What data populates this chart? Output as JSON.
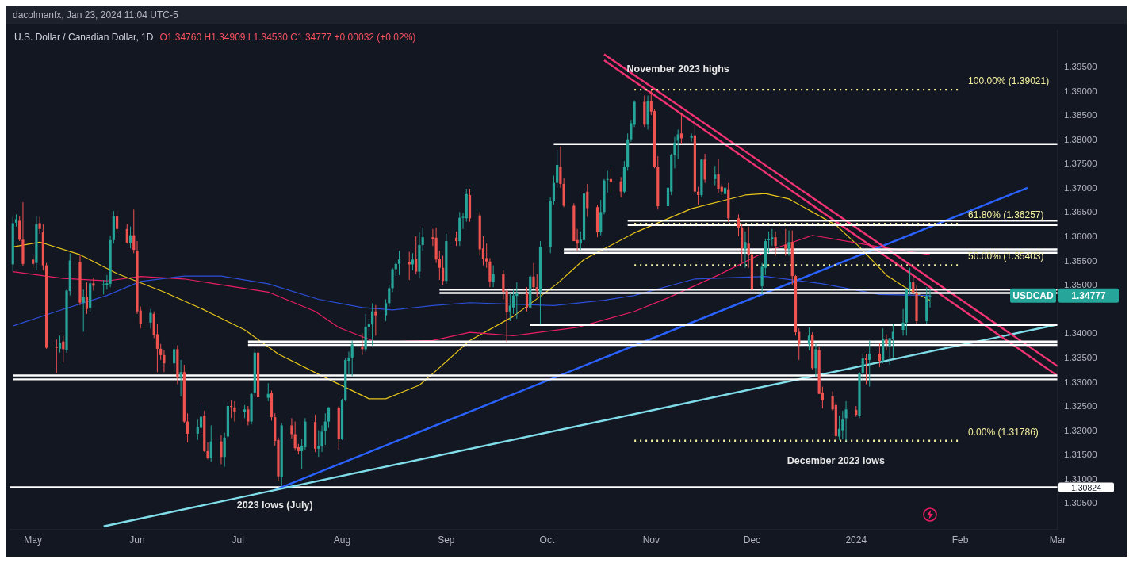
{
  "chart_data": {
    "type": "candlestick",
    "title": "U.S. Dollar / Canadian Dollar, 1D",
    "subtitle": "O1.34760 H1.34909 L1.34530 C1.34777 +0.00032 (+0.02%)",
    "annotations": [
      "dacolmanfx, Jan 23, 2024 11:04 UTC-5",
      "November 2023 highs",
      "December 2023 lows",
      "2023 lows (July)",
      {
        "text": "100.00% (1.39021)",
        "x": "2024-02-01",
        "y": 1.39021
      },
      {
        "text": "61.80% (1.36257)",
        "x": "2024-02-01",
        "y": 1.36257
      },
      {
        "text": "50.00% (1.35403)",
        "x": "2024-02-01",
        "y": 1.35403
      },
      {
        "text": "0.00% (1.31786)",
        "x": "2024-02-01",
        "y": 1.31786
      },
      "USDCAD",
      "1.34777"
    ],
    "xlim": [
      "2023-04-24",
      "2024-03-01"
    ],
    "xticks": [
      {
        "value": "2023-05-01",
        "label": "May"
      },
      {
        "value": "2023-06-01",
        "label": "Jun"
      },
      {
        "value": "2023-07-01",
        "label": "Jul"
      },
      {
        "value": "2023-08-01",
        "label": "Aug"
      },
      {
        "value": "2023-09-01",
        "label": "Sep"
      },
      {
        "value": "2023-10-01",
        "label": "Oct"
      },
      {
        "value": "2023-11-01",
        "label": "Nov"
      },
      {
        "value": "2023-12-01",
        "label": "Dec"
      },
      {
        "value": "2024-01-01",
        "label": "2024"
      },
      {
        "value": "2024-02-01",
        "label": "Feb"
      },
      {
        "value": "2024-03-01",
        "label": "Mar"
      }
    ],
    "ylim": [
      1.2995,
      1.4025
    ],
    "yticks": [
      {
        "value": 1.305,
        "label": "1.30500"
      },
      {
        "value": 1.31,
        "label": "1.31000"
      },
      {
        "value": 1.315,
        "label": "1.31500"
      },
      {
        "value": 1.32,
        "label": "1.32000"
      },
      {
        "value": 1.325,
        "label": "1.32500"
      },
      {
        "value": 1.33,
        "label": "1.33000"
      },
      {
        "value": 1.335,
        "label": "1.33500"
      },
      {
        "value": 1.34,
        "label": "1.34000"
      },
      {
        "value": 1.35,
        "label": "1.35000"
      },
      {
        "value": 1.355,
        "label": "1.35500"
      },
      {
        "value": 1.36,
        "label": "1.36000"
      },
      {
        "value": 1.365,
        "label": "1.36500"
      },
      {
        "value": 1.37,
        "label": "1.37000"
      },
      {
        "value": 1.375,
        "label": "1.37500"
      },
      {
        "value": 1.38,
        "label": "1.38000"
      },
      {
        "value": 1.385,
        "label": "1.38500"
      },
      {
        "value": 1.39,
        "label": "1.39000"
      },
      {
        "value": 1.395,
        "label": "1.39500"
      }
    ],
    "ref_lines": [
      {
        "axis": "y",
        "value": 1.30824,
        "label": "1.30824",
        "color": "#ffffff"
      }
    ],
    "x": [
      "2023-04-25",
      "2023-04-26",
      "2023-04-27",
      "2023-04-28",
      "2023-05-01",
      "2023-05-02",
      "2023-05-03",
      "2023-05-04",
      "2023-05-05",
      "2023-05-08",
      "2023-05-09",
      "2023-05-10",
      "2023-05-11",
      "2023-05-12",
      "2023-05-15",
      "2023-05-16",
      "2023-05-17",
      "2023-05-18",
      "2023-05-19",
      "2023-05-22",
      "2023-05-23",
      "2023-05-24",
      "2023-05-25",
      "2023-05-26",
      "2023-05-29",
      "2023-05-30",
      "2023-05-31",
      "2023-06-01",
      "2023-06-02",
      "2023-06-05",
      "2023-06-06",
      "2023-06-07",
      "2023-06-08",
      "2023-06-09",
      "2023-06-12",
      "2023-06-13",
      "2023-06-14",
      "2023-06-15",
      "2023-06-16",
      "2023-06-19",
      "2023-06-20",
      "2023-06-21",
      "2023-06-22",
      "2023-06-23",
      "2023-06-26",
      "2023-06-27",
      "2023-06-28",
      "2023-06-29",
      "2023-06-30",
      "2023-07-03",
      "2023-07-04",
      "2023-07-05",
      "2023-07-06",
      "2023-07-07",
      "2023-07-10",
      "2023-07-11",
      "2023-07-12",
      "2023-07-13",
      "2023-07-14",
      "2023-07-17",
      "2023-07-18",
      "2023-07-19",
      "2023-07-20",
      "2023-07-21",
      "2023-07-24",
      "2023-07-25",
      "2023-07-26",
      "2023-07-27",
      "2023-07-28",
      "2023-07-31",
      "2023-08-01",
      "2023-08-02",
      "2023-08-03",
      "2023-08-04",
      "2023-08-07",
      "2023-08-08",
      "2023-08-09",
      "2023-08-10",
      "2023-08-11",
      "2023-08-14",
      "2023-08-15",
      "2023-08-16",
      "2023-08-17",
      "2023-08-18",
      "2023-08-21",
      "2023-08-22",
      "2023-08-23",
      "2023-08-24",
      "2023-08-25",
      "2023-08-28",
      "2023-08-29",
      "2023-08-30",
      "2023-08-31",
      "2023-09-01",
      "2023-09-04",
      "2023-09-05",
      "2023-09-06",
      "2023-09-07",
      "2023-09-08",
      "2023-09-11",
      "2023-09-12",
      "2023-09-13",
      "2023-09-14",
      "2023-09-15",
      "2023-09-18",
      "2023-09-19",
      "2023-09-20",
      "2023-09-21",
      "2023-09-22",
      "2023-09-25",
      "2023-09-26",
      "2023-09-27",
      "2023-09-28",
      "2023-09-29",
      "2023-10-02",
      "2023-10-03",
      "2023-10-04",
      "2023-10-05",
      "2023-10-06",
      "2023-10-09",
      "2023-10-10",
      "2023-10-11",
      "2023-10-12",
      "2023-10-13",
      "2023-10-16",
      "2023-10-17",
      "2023-10-18",
      "2023-10-19",
      "2023-10-20",
      "2023-10-23",
      "2023-10-24",
      "2023-10-25",
      "2023-10-26",
      "2023-10-27",
      "2023-10-30",
      "2023-10-31",
      "2023-11-01",
      "2023-11-02",
      "2023-11-03",
      "2023-11-06",
      "2023-11-07",
      "2023-11-08",
      "2023-11-09",
      "2023-11-10",
      "2023-11-13",
      "2023-11-14",
      "2023-11-15",
      "2023-11-16",
      "2023-11-17",
      "2023-11-20",
      "2023-11-21",
      "2023-11-22",
      "2023-11-23",
      "2023-11-24",
      "2023-11-27",
      "2023-11-28",
      "2023-11-29",
      "2023-11-30",
      "2023-12-01",
      "2023-12-04",
      "2023-12-05",
      "2023-12-06",
      "2023-12-07",
      "2023-12-08",
      "2023-12-11",
      "2023-12-12",
      "2023-12-13",
      "2023-12-14",
      "2023-12-15",
      "2023-12-18",
      "2023-12-19",
      "2023-12-20",
      "2023-12-21",
      "2023-12-22",
      "2023-12-25",
      "2023-12-26",
      "2023-12-27",
      "2023-12-28",
      "2023-12-29",
      "2024-01-01",
      "2024-01-02",
      "2024-01-03",
      "2024-01-04",
      "2024-01-05",
      "2024-01-08",
      "2024-01-09",
      "2024-01-10",
      "2024-01-11",
      "2024-01-12",
      "2024-01-15",
      "2024-01-16",
      "2024-01-17",
      "2024-01-18",
      "2024-01-19",
      "2024-01-22",
      "2024-01-23"
    ],
    "ohlc": [
      [
        1.3542,
        1.364,
        1.3527,
        1.3627
      ],
      [
        1.3628,
        1.3645,
        1.362,
        1.3635
      ],
      [
        1.3632,
        1.3642,
        1.359,
        1.3593
      ],
      [
        1.3593,
        1.367,
        1.3538,
        1.3543
      ],
      [
        1.3552,
        1.356,
        1.3535,
        1.3543
      ],
      [
        1.3545,
        1.3642,
        1.353,
        1.3625
      ],
      [
        1.3627,
        1.364,
        1.3605,
        1.3615
      ],
      [
        1.3608,
        1.3625,
        1.353,
        1.354
      ],
      [
        1.354,
        1.3545,
        1.3368,
        1.337
      ],
      [
        1.3372,
        1.3387,
        1.3318,
        1.337
      ],
      [
        1.3368,
        1.3395,
        1.336,
        1.338
      ],
      [
        1.3383,
        1.3395,
        1.334,
        1.3367
      ],
      [
        1.3365,
        1.349,
        1.336,
        1.3488
      ],
      [
        1.3487,
        1.3565,
        1.3478,
        1.355
      ],
      [
        1.3547,
        1.3562,
        1.3458,
        1.3463
      ],
      [
        1.3463,
        1.349,
        1.3403,
        1.3475
      ],
      [
        1.3475,
        1.3505,
        1.344,
        1.345
      ],
      [
        1.3452,
        1.351,
        1.3445,
        1.3503
      ],
      [
        1.3503,
        1.3515,
        1.3488,
        1.3498
      ],
      [
        1.35,
        1.351,
        1.348,
        1.3501
      ],
      [
        1.35,
        1.352,
        1.349,
        1.3503
      ],
      [
        1.3502,
        1.36,
        1.3495,
        1.3592
      ],
      [
        1.3592,
        1.3652,
        1.3585,
        1.3642
      ],
      [
        1.3642,
        1.3655,
        1.361,
        1.3615
      ],
      [
        1.3615,
        1.3625,
        1.3585,
        1.3587
      ],
      [
        1.3587,
        1.362,
        1.3575,
        1.3602
      ],
      [
        1.3602,
        1.3655,
        1.3565,
        1.3572
      ],
      [
        1.357,
        1.359,
        1.344,
        1.3445
      ],
      [
        1.3447,
        1.3455,
        1.341,
        1.342
      ],
      [
        1.3422,
        1.345,
        1.341,
        1.3442
      ],
      [
        1.344,
        1.3445,
        1.339,
        1.3397
      ],
      [
        1.3398,
        1.342,
        1.332,
        1.3368
      ],
      [
        1.3368,
        1.3378,
        1.3345,
        1.3355
      ],
      [
        1.3355,
        1.3365,
        1.332,
        1.3338
      ],
      [
        1.3338,
        1.337,
        1.332,
        1.3367
      ],
      [
        1.3367,
        1.3375,
        1.3295,
        1.3308
      ],
      [
        1.3308,
        1.3345,
        1.327,
        1.332
      ],
      [
        1.332,
        1.3335,
        1.3215,
        1.3218
      ],
      [
        1.3218,
        1.3235,
        1.3175,
        1.3193
      ],
      [
        1.3193,
        1.3222,
        1.318,
        1.3207
      ],
      [
        1.3205,
        1.3255,
        1.3195,
        1.3228
      ],
      [
        1.323,
        1.324,
        1.3155,
        1.3157
      ],
      [
        1.3157,
        1.3175,
        1.314,
        1.3143
      ],
      [
        1.3143,
        1.321,
        1.3135,
        1.3177
      ],
      [
        1.3177,
        1.319,
        1.313,
        1.3145
      ],
      [
        1.3145,
        1.3195,
        1.3125,
        1.3185
      ],
      [
        1.3187,
        1.3258,
        1.318,
        1.325
      ],
      [
        1.325,
        1.3262,
        1.3225,
        1.3248
      ],
      [
        1.3247,
        1.326,
        1.3218,
        1.3238
      ],
      [
        1.3237,
        1.3252,
        1.3225,
        1.3243
      ],
      [
        1.3243,
        1.325,
        1.321,
        1.3218
      ],
      [
        1.3218,
        1.3277,
        1.3212,
        1.3275
      ],
      [
        1.3277,
        1.3368,
        1.327,
        1.336
      ],
      [
        1.336,
        1.3385,
        1.3265,
        1.3268
      ],
      [
        1.3267,
        1.3297,
        1.326,
        1.3275
      ],
      [
        1.3277,
        1.3282,
        1.322,
        1.3227
      ],
      [
        1.3227,
        1.3235,
        1.3168,
        1.3178
      ],
      [
        1.318,
        1.3185,
        1.3095,
        1.3105
      ],
      [
        1.3103,
        1.3215,
        1.3085,
        1.321
      ],
      [
        1.321,
        1.3225,
        1.3183,
        1.3192
      ],
      [
        1.3192,
        1.3218,
        1.3158,
        1.3163
      ],
      [
        1.3165,
        1.3172,
        1.315,
        1.3157
      ],
      [
        1.3157,
        1.3182,
        1.312,
        1.3168
      ],
      [
        1.3165,
        1.3225,
        1.316,
        1.3218
      ],
      [
        1.3217,
        1.3232,
        1.3155,
        1.3162
      ],
      [
        1.3162,
        1.32,
        1.3145,
        1.3168
      ],
      [
        1.3167,
        1.321,
        1.3155,
        1.3197
      ],
      [
        1.3198,
        1.3235,
        1.317,
        1.3218
      ],
      [
        1.3218,
        1.3248,
        1.3205,
        1.3247
      ],
      [
        1.3247,
        1.325,
        1.316,
        1.3182
      ],
      [
        1.3182,
        1.3265,
        1.318,
        1.3263
      ],
      [
        1.3263,
        1.3348,
        1.326,
        1.3345
      ],
      [
        1.3343,
        1.3362,
        1.3315,
        1.335
      ],
      [
        1.335,
        1.3385,
        1.3312,
        1.3377
      ],
      [
        1.3372,
        1.34,
        1.3355,
        1.3367
      ],
      [
        1.3367,
        1.344,
        1.3362,
        1.3413
      ],
      [
        1.3413,
        1.343,
        1.3395,
        1.342
      ],
      [
        1.3418,
        1.3462,
        1.3375,
        1.3445
      ],
      [
        1.3445,
        1.3458,
        1.3395,
        1.3437
      ],
      [
        1.3437,
        1.347,
        1.3425,
        1.3462
      ],
      [
        1.3462,
        1.35,
        1.3455,
        1.3493
      ],
      [
        1.3493,
        1.3535,
        1.3485,
        1.3532
      ],
      [
        1.3532,
        1.3548,
        1.3518,
        1.3543
      ],
      [
        1.3543,
        1.357,
        1.352,
        1.3552
      ],
      [
        1.3547,
        1.3568,
        1.351,
        1.3542
      ],
      [
        1.3542,
        1.3565,
        1.353,
        1.3552
      ],
      [
        1.3553,
        1.36,
        1.3522,
        1.3527
      ],
      [
        1.3527,
        1.3608,
        1.3515,
        1.3582
      ],
      [
        1.3582,
        1.3618,
        1.357,
        1.3598
      ],
      [
        1.3598,
        1.3615,
        1.358,
        1.3595
      ],
      [
        1.3597,
        1.3618,
        1.3545,
        1.3552
      ],
      [
        1.3553,
        1.357,
        1.351,
        1.3535
      ],
      [
        1.3535,
        1.356,
        1.35,
        1.3508
      ],
      [
        1.3508,
        1.3605,
        1.3502,
        1.359
      ],
      [
        1.3597,
        1.361,
        1.358,
        1.359
      ],
      [
        1.359,
        1.365,
        1.358,
        1.3638
      ],
      [
        1.3638,
        1.3648,
        1.3615,
        1.364
      ],
      [
        1.3637,
        1.3698,
        1.363,
        1.3687
      ],
      [
        1.3685,
        1.3698,
        1.363,
        1.3637
      ],
      [
        1.3643,
        1.365,
        1.356,
        1.3573
      ],
      [
        1.3575,
        1.36,
        1.354,
        1.3553
      ],
      [
        1.3555,
        1.3585,
        1.3535,
        1.3548
      ],
      [
        1.3548,
        1.3555,
        1.3495,
        1.3507
      ],
      [
        1.3505,
        1.354,
        1.3495,
        1.3522
      ],
      [
        1.3522,
        1.353,
        1.347,
        1.3485
      ],
      [
        1.3487,
        1.349,
        1.3382,
        1.3443
      ],
      [
        1.3445,
        1.3482,
        1.3425,
        1.3457
      ],
      [
        1.3453,
        1.349,
        1.344,
        1.3478
      ],
      [
        1.3477,
        1.3505,
        1.343,
        1.3482
      ],
      [
        1.3483,
        1.3495,
        1.3445,
        1.3453
      ],
      [
        1.3453,
        1.352,
        1.345,
        1.3517
      ],
      [
        1.3517,
        1.3545,
        1.349,
        1.3495
      ],
      [
        1.3495,
        1.3522,
        1.3475,
        1.3487
      ],
      [
        1.3485,
        1.359,
        1.3418,
        1.3578
      ],
      [
        1.3578,
        1.368,
        1.3565,
        1.3673
      ],
      [
        1.3672,
        1.3725,
        1.3665,
        1.371
      ],
      [
        1.371,
        1.3778,
        1.37,
        1.3747
      ],
      [
        1.3743,
        1.3785,
        1.37,
        1.3708
      ],
      [
        1.3708,
        1.372,
        1.366,
        1.3663
      ],
      [
        1.3663,
        1.3668,
        1.359,
        1.359
      ],
      [
        1.3592,
        1.3615,
        1.357,
        1.3585
      ],
      [
        1.3585,
        1.361,
        1.3572,
        1.3593
      ],
      [
        1.3592,
        1.37,
        1.3585,
        1.3688
      ],
      [
        1.3692,
        1.3708,
        1.364,
        1.3658
      ],
      [
        1.366,
        1.3665,
        1.3598,
        1.3608
      ],
      [
        1.3608,
        1.3675,
        1.3602,
        1.365
      ],
      [
        1.365,
        1.3718,
        1.3645,
        1.3715
      ],
      [
        1.3717,
        1.3735,
        1.369,
        1.3718
      ],
      [
        1.3718,
        1.3738,
        1.3692,
        1.3712
      ],
      [
        1.3713,
        1.3722,
        1.368,
        1.3692
      ],
      [
        1.3692,
        1.3755,
        1.3688,
        1.3743
      ],
      [
        1.3743,
        1.3812,
        1.3735,
        1.38
      ],
      [
        1.38,
        1.384,
        1.3795,
        1.3833
      ],
      [
        1.383,
        1.388,
        1.3825,
        1.3877
      ],
      [
        1.3877,
        1.389,
        1.3825,
        1.383
      ],
      [
        1.383,
        1.389,
        1.382,
        1.3878
      ],
      [
        1.3878,
        1.3902,
        1.385,
        1.3857
      ],
      [
        1.3858,
        1.3862,
        1.374,
        1.3743
      ],
      [
        1.3743,
        1.3765,
        1.3655,
        1.3662
      ],
      [
        1.3662,
        1.3705,
        1.364,
        1.37
      ],
      [
        1.3692,
        1.377,
        1.3685,
        1.3767
      ],
      [
        1.3768,
        1.3805,
        1.374,
        1.3793
      ],
      [
        1.3797,
        1.382,
        1.376,
        1.381
      ],
      [
        1.3812,
        1.3855,
        1.379,
        1.3802
      ],
      [
        1.3803,
        1.3812,
        1.3795,
        1.3807
      ],
      [
        1.3808,
        1.385,
        1.369,
        1.3692
      ],
      [
        1.3692,
        1.3702,
        1.3665,
        1.3685
      ],
      [
        1.3685,
        1.376,
        1.368,
        1.3758
      ],
      [
        1.3758,
        1.377,
        1.371,
        1.3717
      ],
      [
        1.3718,
        1.3745,
        1.3705,
        1.3727
      ],
      [
        1.3728,
        1.376,
        1.369,
        1.3698
      ],
      [
        1.3702,
        1.3708,
        1.3685,
        1.3692
      ],
      [
        1.3687,
        1.371,
        1.367,
        1.37
      ],
      [
        1.3697,
        1.371,
        1.363,
        1.3637
      ],
      [
        1.3637,
        1.3645,
        1.36,
        1.3618
      ],
      [
        1.3618,
        1.3625,
        1.3545,
        1.3575
      ],
      [
        1.3573,
        1.361,
        1.3535,
        1.3588
      ],
      [
        1.3585,
        1.362,
        1.3535,
        1.3562
      ],
      [
        1.3563,
        1.357,
        1.349,
        1.349
      ],
      [
        1.3497,
        1.3545,
        1.348,
        1.3537
      ],
      [
        1.3535,
        1.3595,
        1.352,
        1.359
      ],
      [
        1.3592,
        1.361,
        1.3565,
        1.3595
      ],
      [
        1.3595,
        1.3615,
        1.358,
        1.3598
      ],
      [
        1.3598,
        1.361,
        1.356,
        1.358
      ],
      [
        1.3582,
        1.3615,
        1.356,
        1.3573
      ],
      [
        1.3573,
        1.3612,
        1.356,
        1.3588
      ],
      [
        1.3588,
        1.3612,
        1.35,
        1.3518
      ],
      [
        1.3518,
        1.352,
        1.3395,
        1.3402
      ],
      [
        1.3403,
        1.341,
        1.3345,
        1.3377
      ],
      [
        1.3377,
        1.3412,
        1.3365,
        1.3395
      ],
      [
        1.3397,
        1.3402,
        1.3325,
        1.3328
      ],
      [
        1.3328,
        1.338,
        1.331,
        1.3367
      ],
      [
        1.3365,
        1.3372,
        1.3275,
        1.3275
      ],
      [
        1.3277,
        1.329,
        1.3245,
        1.3262
      ],
      [
        1.327,
        1.328,
        1.324,
        1.3243
      ],
      [
        1.3252,
        1.3258,
        1.318,
        1.3188
      ],
      [
        1.3187,
        1.323,
        1.318,
        1.3203
      ],
      [
        1.32,
        1.324,
        1.3182,
        1.3222
      ],
      [
        1.3225,
        1.326,
        1.3178,
        1.3243
      ],
      [
        1.3242,
        1.325,
        1.3228,
        1.3232
      ],
      [
        1.323,
        1.332,
        1.3225,
        1.3317
      ],
      [
        1.3318,
        1.3358,
        1.33,
        1.3348
      ],
      [
        1.3348,
        1.3358,
        1.3295,
        1.3345
      ],
      [
        1.3345,
        1.3385,
        1.329,
        1.3358
      ],
      [
        1.3358,
        1.338,
        1.333,
        1.3343
      ],
      [
        1.3343,
        1.341,
        1.3338,
        1.3388
      ],
      [
        1.3387,
        1.3398,
        1.3365,
        1.3378
      ],
      [
        1.3373,
        1.339,
        1.3335,
        1.339
      ],
      [
        1.3388,
        1.342,
        1.335,
        1.3403
      ],
      [
        1.3407,
        1.345,
        1.3395,
        1.3422
      ],
      [
        1.3422,
        1.3493,
        1.3395,
        1.349
      ],
      [
        1.349,
        1.3535,
        1.348,
        1.3505
      ],
      [
        1.3505,
        1.352,
        1.3478,
        1.3483
      ],
      [
        1.3483,
        1.3498,
        1.342,
        1.3425
      ],
      [
        1.3425,
        1.3495,
        1.342,
        1.3477
      ],
      [
        1.3476,
        1.34909,
        1.3453,
        1.34777
      ]
    ],
    "series": [
      {
        "type": "line",
        "color": "#e8c61c",
        "x": [
          "2023-04-25",
          "2023-05-03",
          "2023-05-15",
          "2023-05-26",
          "2023-06-09",
          "2023-06-21",
          "2023-07-03",
          "2023-07-13",
          "2023-07-26",
          "2023-08-09",
          "2023-08-14",
          "2023-08-24",
          "2023-08-29",
          "2023-09-08",
          "2023-09-21",
          "2023-10-04",
          "2023-10-12",
          "2023-10-27",
          "2023-11-13",
          "2023-11-29",
          "2023-12-05",
          "2023-12-12",
          "2023-12-26",
          "2024-01-02",
          "2024-01-10",
          "2024-01-16",
          "2024-01-23"
        ],
        "values": [
          1.3578,
          1.3588,
          1.3562,
          1.3523,
          1.3485,
          1.3448,
          1.3407,
          1.3357,
          1.3312,
          1.3265,
          1.3265,
          1.3293,
          1.3323,
          1.3385,
          1.3435,
          1.3502,
          1.3552,
          1.3607,
          1.3657,
          1.3685,
          1.3688,
          1.3677,
          1.3623,
          1.3578,
          1.352,
          1.3493,
          1.3468
        ]
      },
      {
        "type": "line",
        "color": "#e91e63",
        "x": [
          "2023-04-25",
          "2023-05-10",
          "2023-05-23",
          "2023-06-02",
          "2023-06-15",
          "2023-06-26",
          "2023-07-10",
          "2023-07-24",
          "2023-07-31",
          "2023-08-11",
          "2023-08-28",
          "2023-09-08",
          "2023-09-21",
          "2023-10-10",
          "2023-10-27",
          "2023-11-06",
          "2023-11-21",
          "2023-12-05",
          "2023-12-19",
          "2024-01-08",
          "2024-01-23"
        ],
        "values": [
          1.3527,
          1.3513,
          1.3508,
          1.3517,
          1.3512,
          1.35,
          1.3485,
          1.3445,
          1.3412,
          1.3382,
          1.3385,
          1.3402,
          1.3395,
          1.3412,
          1.3445,
          1.3473,
          1.352,
          1.3568,
          1.3602,
          1.3578,
          1.3562
        ]
      },
      {
        "type": "line",
        "color": "#2c4fd8",
        "x": [
          "2023-04-25",
          "2023-05-08",
          "2023-05-23",
          "2023-06-02",
          "2023-06-15",
          "2023-06-26",
          "2023-07-10",
          "2023-07-25",
          "2023-08-07",
          "2023-08-16",
          "2023-08-28",
          "2023-09-08",
          "2023-10-03",
          "2023-10-18",
          "2023-10-27",
          "2023-11-14",
          "2023-12-05",
          "2023-12-22",
          "2024-01-08",
          "2024-01-23"
        ],
        "values": [
          1.3415,
          1.3445,
          1.3478,
          1.3507,
          1.3518,
          1.3518,
          1.3502,
          1.347,
          1.3453,
          1.3448,
          1.3457,
          1.3463,
          1.3457,
          1.3468,
          1.3478,
          1.3512,
          1.3517,
          1.3502,
          1.348,
          1.3478
        ]
      },
      {
        "type": "line",
        "color": "#2962ff",
        "x": [
          "2023-07-12",
          "2024-02-21"
        ],
        "values": [
          1.3077,
          1.37
        ]
      },
      {
        "type": "line",
        "color": "#80deea",
        "x": [
          "2023-05-22",
          "2024-03-01"
        ],
        "values": [
          1.3002,
          1.3418
        ]
      },
      {
        "type": "line",
        "color": "#f23373",
        "x": [
          "2023-10-18",
          "2024-03-01"
        ],
        "values": [
          1.3975,
          1.3332
        ]
      },
      {
        "type": "line",
        "color": "#f23373",
        "x": [
          "2023-10-18",
          "2024-03-01"
        ],
        "values": [
          1.3963,
          1.3312
        ]
      },
      {
        "type": "line",
        "color": "#ffffff",
        "x": [
          "2023-10-03",
          "2024-03-01"
        ],
        "values": [
          1.379,
          1.379
        ]
      },
      {
        "type": "line",
        "color": "#ffffff",
        "x": [
          "2023-10-25",
          "2024-03-01"
        ],
        "values": [
          1.3632,
          1.3632
        ]
      },
      {
        "type": "line",
        "color": "#ffffff",
        "x": [
          "2023-10-25",
          "2024-03-01"
        ],
        "values": [
          1.3623,
          1.3623
        ]
      },
      {
        "type": "line",
        "color": "#ffffff",
        "x": [
          "2023-10-06",
          "2024-03-01"
        ],
        "values": [
          1.3573,
          1.3573
        ]
      },
      {
        "type": "line",
        "color": "#ffffff",
        "x": [
          "2023-10-06",
          "2024-03-01"
        ],
        "values": [
          1.3566,
          1.3566
        ]
      },
      {
        "type": "line",
        "color": "#ffffff",
        "x": [
          "2023-08-30",
          "2024-03-01"
        ],
        "values": [
          1.349,
          1.349
        ]
      },
      {
        "type": "line",
        "color": "#ffffff",
        "x": [
          "2023-08-30",
          "2024-03-01"
        ],
        "values": [
          1.3483,
          1.3483
        ]
      },
      {
        "type": "line",
        "color": "#ffffff",
        "x": [
          "2023-09-26",
          "2024-03-01"
        ],
        "values": [
          1.3417,
          1.3417
        ]
      },
      {
        "type": "line",
        "color": "#ffffff",
        "x": [
          "2023-07-04",
          "2024-03-01"
        ],
        "values": [
          1.3383,
          1.3383
        ]
      },
      {
        "type": "line",
        "color": "#ffffff",
        "x": [
          "2023-07-04",
          "2024-03-01"
        ],
        "values": [
          1.3376,
          1.3376
        ]
      },
      {
        "type": "line",
        "color": "#ffffff",
        "x": [
          "2023-04-25",
          "2024-03-01"
        ],
        "values": [
          1.3313,
          1.3313
        ]
      },
      {
        "type": "line",
        "color": "#ffffff",
        "x": [
          "2023-04-25",
          "2024-03-01"
        ],
        "values": [
          1.3305,
          1.3305
        ]
      },
      {
        "type": "line",
        "color": "#f5f0a0",
        "line_style": "dotted",
        "x": [
          "2023-10-27",
          "2024-02-01"
        ],
        "values": [
          1.39021,
          1.39021
        ]
      },
      {
        "type": "line",
        "color": "#f5f0a0",
        "line_style": "dotted",
        "x": [
          "2023-10-27",
          "2024-02-01"
        ],
        "values": [
          1.36257,
          1.36257
        ]
      },
      {
        "type": "line",
        "color": "#f5f0a0",
        "line_style": "dotted",
        "x": [
          "2023-10-27",
          "2024-02-01"
        ],
        "values": [
          1.35403,
          1.35403
        ]
      },
      {
        "type": "line",
        "color": "#f5f0a0",
        "line_style": "dotted",
        "x": [
          "2023-10-27",
          "2024-02-01"
        ],
        "values": [
          1.31786,
          1.31786
        ]
      }
    ]
  }
}
